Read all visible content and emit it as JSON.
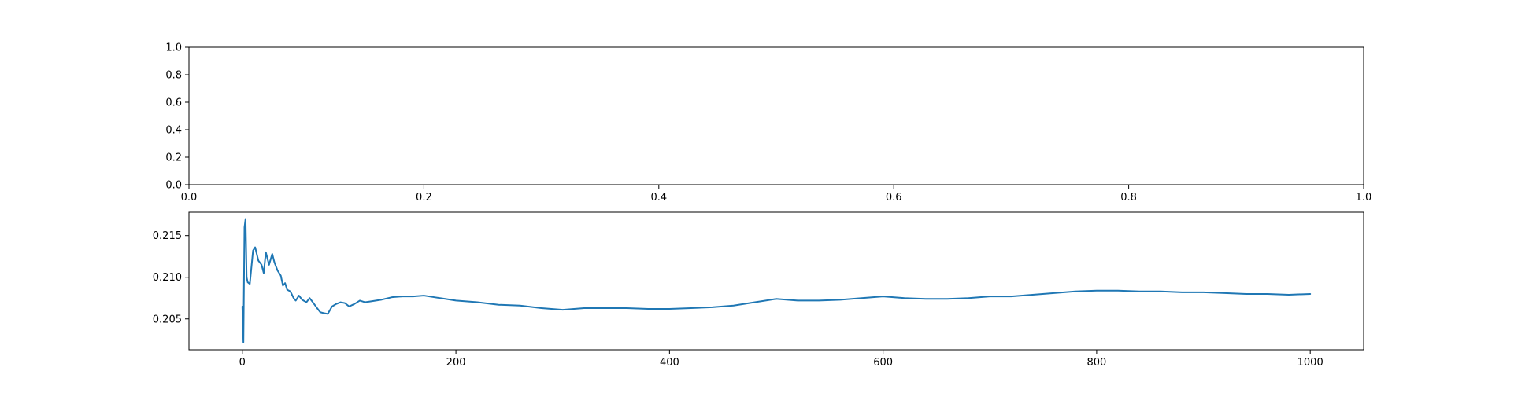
{
  "chart_data": [
    {
      "type": "line",
      "title": "",
      "xlabel": "",
      "ylabel": "",
      "xlim": [
        0.0,
        1.0
      ],
      "ylim": [
        0.0,
        1.0
      ],
      "xticks": [
        "0.0",
        "0.2",
        "0.4",
        "0.6",
        "0.8",
        "1.0"
      ],
      "yticks": [
        "0.0",
        "0.2",
        "0.4",
        "0.6",
        "0.8",
        "1.0"
      ],
      "grid": false,
      "series": []
    },
    {
      "type": "line",
      "title": "",
      "xlabel": "",
      "ylabel": "",
      "xlim": [
        -50,
        1050
      ],
      "ylim": [
        0.2013,
        0.2178
      ],
      "xticks": [
        "0",
        "200",
        "400",
        "600",
        "800",
        "1000"
      ],
      "yticks": [
        "0.205",
        "0.210",
        "0.215"
      ],
      "grid": false,
      "series": [
        {
          "color": "#1f77b4",
          "x": [
            0,
            1,
            2,
            3,
            4,
            5,
            7,
            10,
            12,
            15,
            18,
            20,
            22,
            25,
            28,
            30,
            33,
            36,
            38,
            40,
            42,
            45,
            48,
            50,
            53,
            56,
            60,
            63,
            66,
            70,
            73,
            76,
            80,
            84,
            88,
            92,
            96,
            100,
            105,
            110,
            115,
            120,
            130,
            140,
            150,
            160,
            170,
            180,
            190,
            200,
            220,
            240,
            260,
            280,
            300,
            320,
            340,
            360,
            380,
            400,
            420,
            440,
            460,
            480,
            500,
            520,
            540,
            560,
            580,
            600,
            620,
            640,
            660,
            680,
            700,
            720,
            740,
            760,
            780,
            800,
            820,
            840,
            860,
            880,
            900,
            920,
            940,
            960,
            980,
            1000
          ],
          "y": [
            0.2065,
            0.2022,
            0.216,
            0.217,
            0.21,
            0.2094,
            0.2092,
            0.2132,
            0.2136,
            0.212,
            0.2115,
            0.2105,
            0.213,
            0.2115,
            0.2128,
            0.2118,
            0.2108,
            0.2102,
            0.209,
            0.2093,
            0.2085,
            0.2083,
            0.2075,
            0.2072,
            0.2078,
            0.2073,
            0.207,
            0.2075,
            0.207,
            0.2063,
            0.2058,
            0.2057,
            0.2056,
            0.2065,
            0.2068,
            0.207,
            0.2069,
            0.2065,
            0.2068,
            0.2072,
            0.207,
            0.2071,
            0.2073,
            0.2076,
            0.2077,
            0.2077,
            0.2078,
            0.2076,
            0.2074,
            0.2072,
            0.207,
            0.2067,
            0.2066,
            0.2063,
            0.2061,
            0.2063,
            0.2063,
            0.2063,
            0.2062,
            0.2062,
            0.2063,
            0.2064,
            0.2066,
            0.207,
            0.2074,
            0.2072,
            0.2072,
            0.2073,
            0.2075,
            0.2077,
            0.2075,
            0.2074,
            0.2074,
            0.2075,
            0.2077,
            0.2077,
            0.2079,
            0.2081,
            0.2083,
            0.2084,
            0.2084,
            0.2083,
            0.2083,
            0.2082,
            0.2082,
            0.2081,
            0.208,
            0.208,
            0.2079,
            0.208
          ]
        }
      ]
    }
  ]
}
